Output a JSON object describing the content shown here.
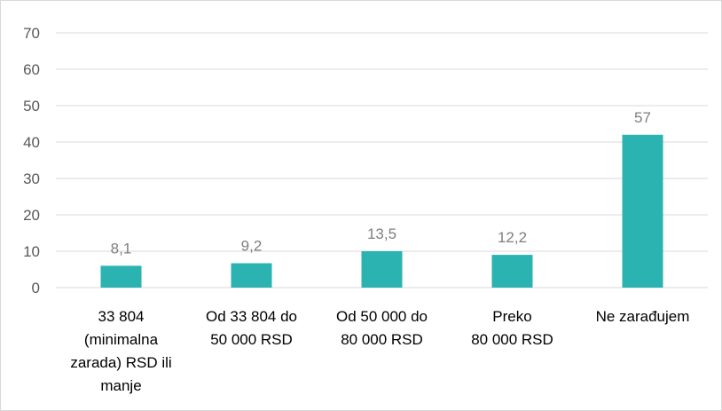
{
  "chart_data": {
    "type": "bar",
    "categories": [
      [
        "33 804",
        "(minimalna",
        "zarada) RSD ili",
        "manje"
      ],
      [
        "Od 33 804 do",
        "50 000 RSD"
      ],
      [
        "Od 50 000 do",
        "80 000 RSD"
      ],
      [
        "Preko",
        "80 000 RSD"
      ],
      [
        "Ne zarađujem"
      ]
    ],
    "series": [
      {
        "values": [
          6,
          6.7,
          10,
          9,
          42
        ],
        "data_labels": [
          "8,1",
          "9,2",
          "13,5",
          "12,2",
          "57"
        ]
      }
    ],
    "title": "",
    "xlabel": "",
    "ylabel": "",
    "ylim": [
      0,
      70
    ],
    "yticks": [
      0,
      10,
      20,
      30,
      40,
      50,
      60,
      70
    ],
    "grid": true,
    "legend": "none",
    "bar_color": "#2ab3b1",
    "grid_color": "#d9d9d9"
  }
}
